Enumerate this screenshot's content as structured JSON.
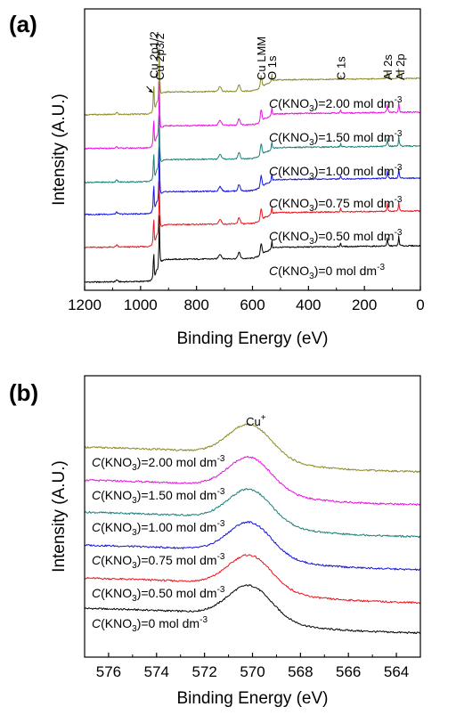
{
  "chart_data": [
    {
      "type": "line",
      "panel_label": "(a)",
      "xlabel": "Binding Energy (eV)",
      "ylabel": "Intensity (A.U.)",
      "xlim": [
        1200,
        0
      ],
      "x_reversed": true,
      "xticks": [
        "1200",
        "1000",
        "800",
        "600",
        "400",
        "200",
        "0"
      ],
      "y_ticks_shown": false,
      "peak_labels": [
        {
          "text": "Cu 2p1/2",
          "x": 953
        },
        {
          "text": "Cu 2p3/2",
          "x": 933
        },
        {
          "text": "Cu LMM",
          "x": 569
        },
        {
          "text": "O 1s",
          "x": 531
        },
        {
          "text": "C 1s",
          "x": 285
        },
        {
          "text": "Al 2s",
          "x": 118
        },
        {
          "text": "Al 2p",
          "x": 74
        }
      ],
      "series": [
        {
          "name_prefix": "C",
          "name": "(KNO3)=0 mol dm-3",
          "name_main": "(KNO",
          "name_sub": "3",
          "name_mid": ")=0 mol dm",
          "name_sup": "-3",
          "color": "#000000"
        },
        {
          "name_prefix": "C",
          "name": "(KNO3)=0.50 mol dm-3",
          "name_main": "(KNO",
          "name_sub": "3",
          "name_mid": ")=0.50 mol dm",
          "name_sup": "-3",
          "color": "#e8141b"
        },
        {
          "name_prefix": "C",
          "name": "(KNO3)=0.75 mol dm-3",
          "name_main": "(KNO",
          "name_sub": "3",
          "name_mid": ")=0.75 mol dm",
          "name_sup": "-3",
          "color": "#1414e0"
        },
        {
          "name_prefix": "C",
          "name": "(KNO3)=1.00 mol dm-3",
          "name_main": "(KNO",
          "name_sub": "3",
          "name_mid": ")=1.00 mol dm",
          "name_sup": "-3",
          "color": "#1a7f7a"
        },
        {
          "name_prefix": "C",
          "name": "(KNO3)=1.50 mol dm-3",
          "name_main": "(KNO",
          "name_sub": "3",
          "name_mid": ")=1.50 mol dm",
          "name_sup": "-3",
          "color": "#e812e0"
        },
        {
          "name_prefix": "C",
          "name": "(KNO3)=2.00 mol dm-3",
          "name_main": "(KNO",
          "name_sub": "3",
          "name_mid": ")=2.00 mol dm",
          "name_sup": "-3",
          "color": "#8a8a26"
        }
      ]
    },
    {
      "type": "line",
      "panel_label": "(b)",
      "xlabel": "Binding Energy (eV)",
      "ylabel": "Intensity (A.U.)",
      "xlim": [
        577,
        563
      ],
      "x_reversed": true,
      "xticks": [
        "576",
        "574",
        "572",
        "570",
        "568",
        "566",
        "564"
      ],
      "y_ticks_shown": false,
      "peak_labels": [
        {
          "text": "Cu",
          "sup": "+",
          "x": 570.2
        }
      ],
      "peak_position": 570.1,
      "series": [
        {
          "name_prefix": "C",
          "name": "(KNO3)=0 mol dm-3",
          "name_main": "(KNO",
          "name_sub": "3",
          "name_mid": ")=0 mol dm",
          "name_sup": "-3",
          "color": "#000000"
        },
        {
          "name_prefix": "C",
          "name": "(KNO3)=0.50 mol dm-3",
          "name_main": "(KNO",
          "name_sub": "3",
          "name_mid": ")=0.50 mol dm",
          "name_sup": "-3",
          "color": "#e8141b"
        },
        {
          "name_prefix": "C",
          "name": "(KNO3)=0.75 mol dm-3",
          "name_main": "(KNO",
          "name_sub": "3",
          "name_mid": ")=0.75 mol dm",
          "name_sup": "-3",
          "color": "#1414e0"
        },
        {
          "name_prefix": "C",
          "name": "(KNO3)=1.00 mol dm-3",
          "name_main": "(KNO",
          "name_sub": "3",
          "name_mid": ")=1.00 mol dm",
          "name_sup": "-3",
          "color": "#1a7f7a"
        },
        {
          "name_prefix": "C",
          "name": "(KNO3)=1.50 mol dm-3",
          "name_main": "(KNO",
          "name_sub": "3",
          "name_mid": ")=1.50 mol dm",
          "name_sup": "-3",
          "color": "#e812e0"
        },
        {
          "name_prefix": "C",
          "name": "(KNO3)=2.00 mol dm-3",
          "name_main": "(KNO",
          "name_sub": "3",
          "name_mid": ")=2.00 mol dm",
          "name_sup": "-3",
          "color": "#8a8a26"
        }
      ]
    }
  ]
}
